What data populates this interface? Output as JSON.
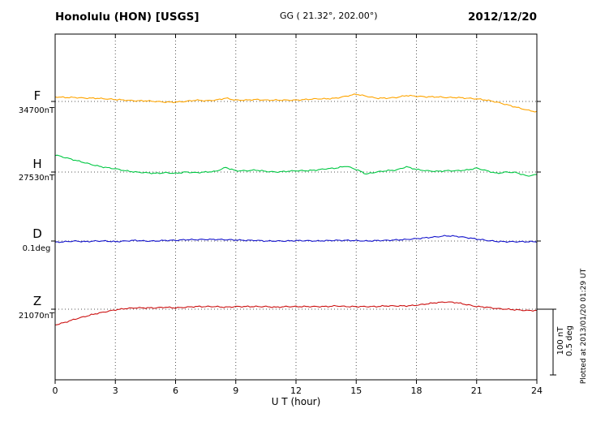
{
  "header": {
    "station": "Honolulu (HON)  [USGS]",
    "coords": "GG ( 21.32°, 202.00°)",
    "date": "2012/12/20"
  },
  "axes": {
    "x_ticks": [
      "0",
      "3",
      "6",
      "9",
      "12",
      "15",
      "18",
      "21",
      "24"
    ],
    "x_label": "U T (hour)"
  },
  "channels": [
    {
      "id": "F",
      "label": "F",
      "baseline_label": "34700nT",
      "units": "nT",
      "color": "#FFA500"
    },
    {
      "id": "H",
      "label": "H",
      "baseline_label": "27530nT",
      "units": "nT",
      "color": "#00C843"
    },
    {
      "id": "D",
      "label": "D",
      "baseline_label": "0.1deg",
      "units": "deg",
      "color": "#1414CC"
    },
    {
      "id": "Z",
      "label": "Z",
      "baseline_label": "21070nT",
      "units": "nT",
      "color": "#CC1010"
    }
  ],
  "scale_bar": {
    "label_nt": "100 nT",
    "label_deg": "0.5 deg"
  },
  "footer_note": "Plotted at 2013/01/20 01:29 UT",
  "chart_data": {
    "type": "line",
    "title": "Honolulu (HON) magnetogram 2012/12/20",
    "xlabel": "U T (hour)",
    "x_range": [
      0,
      24
    ],
    "grid_hours": [
      3,
      6,
      9,
      12,
      15,
      18,
      21
    ],
    "scale": {
      "nT": 100,
      "deg": 0.5
    },
    "x_hours": [
      0,
      0.5,
      1,
      1.5,
      2,
      2.5,
      3,
      3.5,
      4,
      4.5,
      5,
      5.5,
      6,
      6.5,
      7,
      7.5,
      8,
      8.5,
      9,
      9.5,
      10,
      10.5,
      11,
      11.5,
      12,
      12.5,
      13,
      13.5,
      14,
      14.5,
      15,
      15.5,
      16,
      16.5,
      17,
      17.5,
      18,
      18.5,
      19,
      19.5,
      20,
      20.5,
      21,
      21.5,
      22,
      22.5,
      23,
      23.5,
      24
    ],
    "series": [
      {
        "name": "F",
        "units": "nT",
        "baseline": 34700,
        "offsets": [
          7,
          6,
          6,
          5,
          5,
          4,
          3,
          2,
          1,
          1,
          0,
          -1,
          -1,
          0,
          2,
          1,
          2,
          5,
          2,
          2,
          3,
          2,
          2,
          2,
          2,
          3,
          4,
          4,
          5,
          8,
          11,
          8,
          5,
          5,
          6,
          9,
          8,
          7,
          7,
          6,
          6,
          5,
          4,
          2,
          -1,
          -5,
          -9,
          -13,
          -16
        ]
      },
      {
        "name": "H",
        "units": "nT",
        "baseline": 27530,
        "offsets": [
          26,
          22,
          18,
          14,
          10,
          7,
          5,
          2,
          0,
          -1,
          -2,
          -1,
          -2,
          0,
          -1,
          0,
          1,
          7,
          2,
          2,
          3,
          1,
          0,
          1,
          2,
          2,
          3,
          5,
          6,
          9,
          4,
          -3,
          0,
          2,
          3,
          8,
          4,
          2,
          1,
          2,
          2,
          3,
          6,
          2,
          -2,
          0,
          -1,
          -6,
          -4
        ]
      },
      {
        "name": "D",
        "units": "deg",
        "baseline": 0.1,
        "offsets": [
          -0.01,
          -0.005,
          0,
          -0.005,
          0,
          0,
          -0.005,
          0,
          0.005,
          0,
          0,
          0.005,
          0.005,
          0.01,
          0.01,
          0.012,
          0.012,
          0.01,
          0.008,
          0.005,
          0.005,
          0,
          0,
          0,
          0.003,
          0.003,
          0,
          0.003,
          0.005,
          0.005,
          0.003,
          0,
          0.003,
          0.005,
          0.008,
          0.012,
          0.018,
          0.025,
          0.032,
          0.04,
          0.036,
          0.026,
          0.015,
          0.005,
          -0.003,
          -0.005,
          -0.005,
          -0.005,
          -0.005
        ]
      },
      {
        "name": "Z",
        "units": "nT",
        "baseline": 21070,
        "offsets": [
          -24,
          -20,
          -15,
          -11,
          -7,
          -4,
          -1,
          1,
          2,
          2,
          2,
          3,
          2,
          3,
          4,
          4,
          4,
          3,
          4,
          4,
          4,
          4,
          3,
          4,
          4,
          4,
          4,
          4,
          5,
          4,
          4,
          4,
          4,
          5,
          5,
          5,
          6,
          8,
          10,
          11,
          10,
          7,
          4,
          3,
          1,
          0,
          -1,
          -2,
          -2
        ]
      }
    ]
  }
}
